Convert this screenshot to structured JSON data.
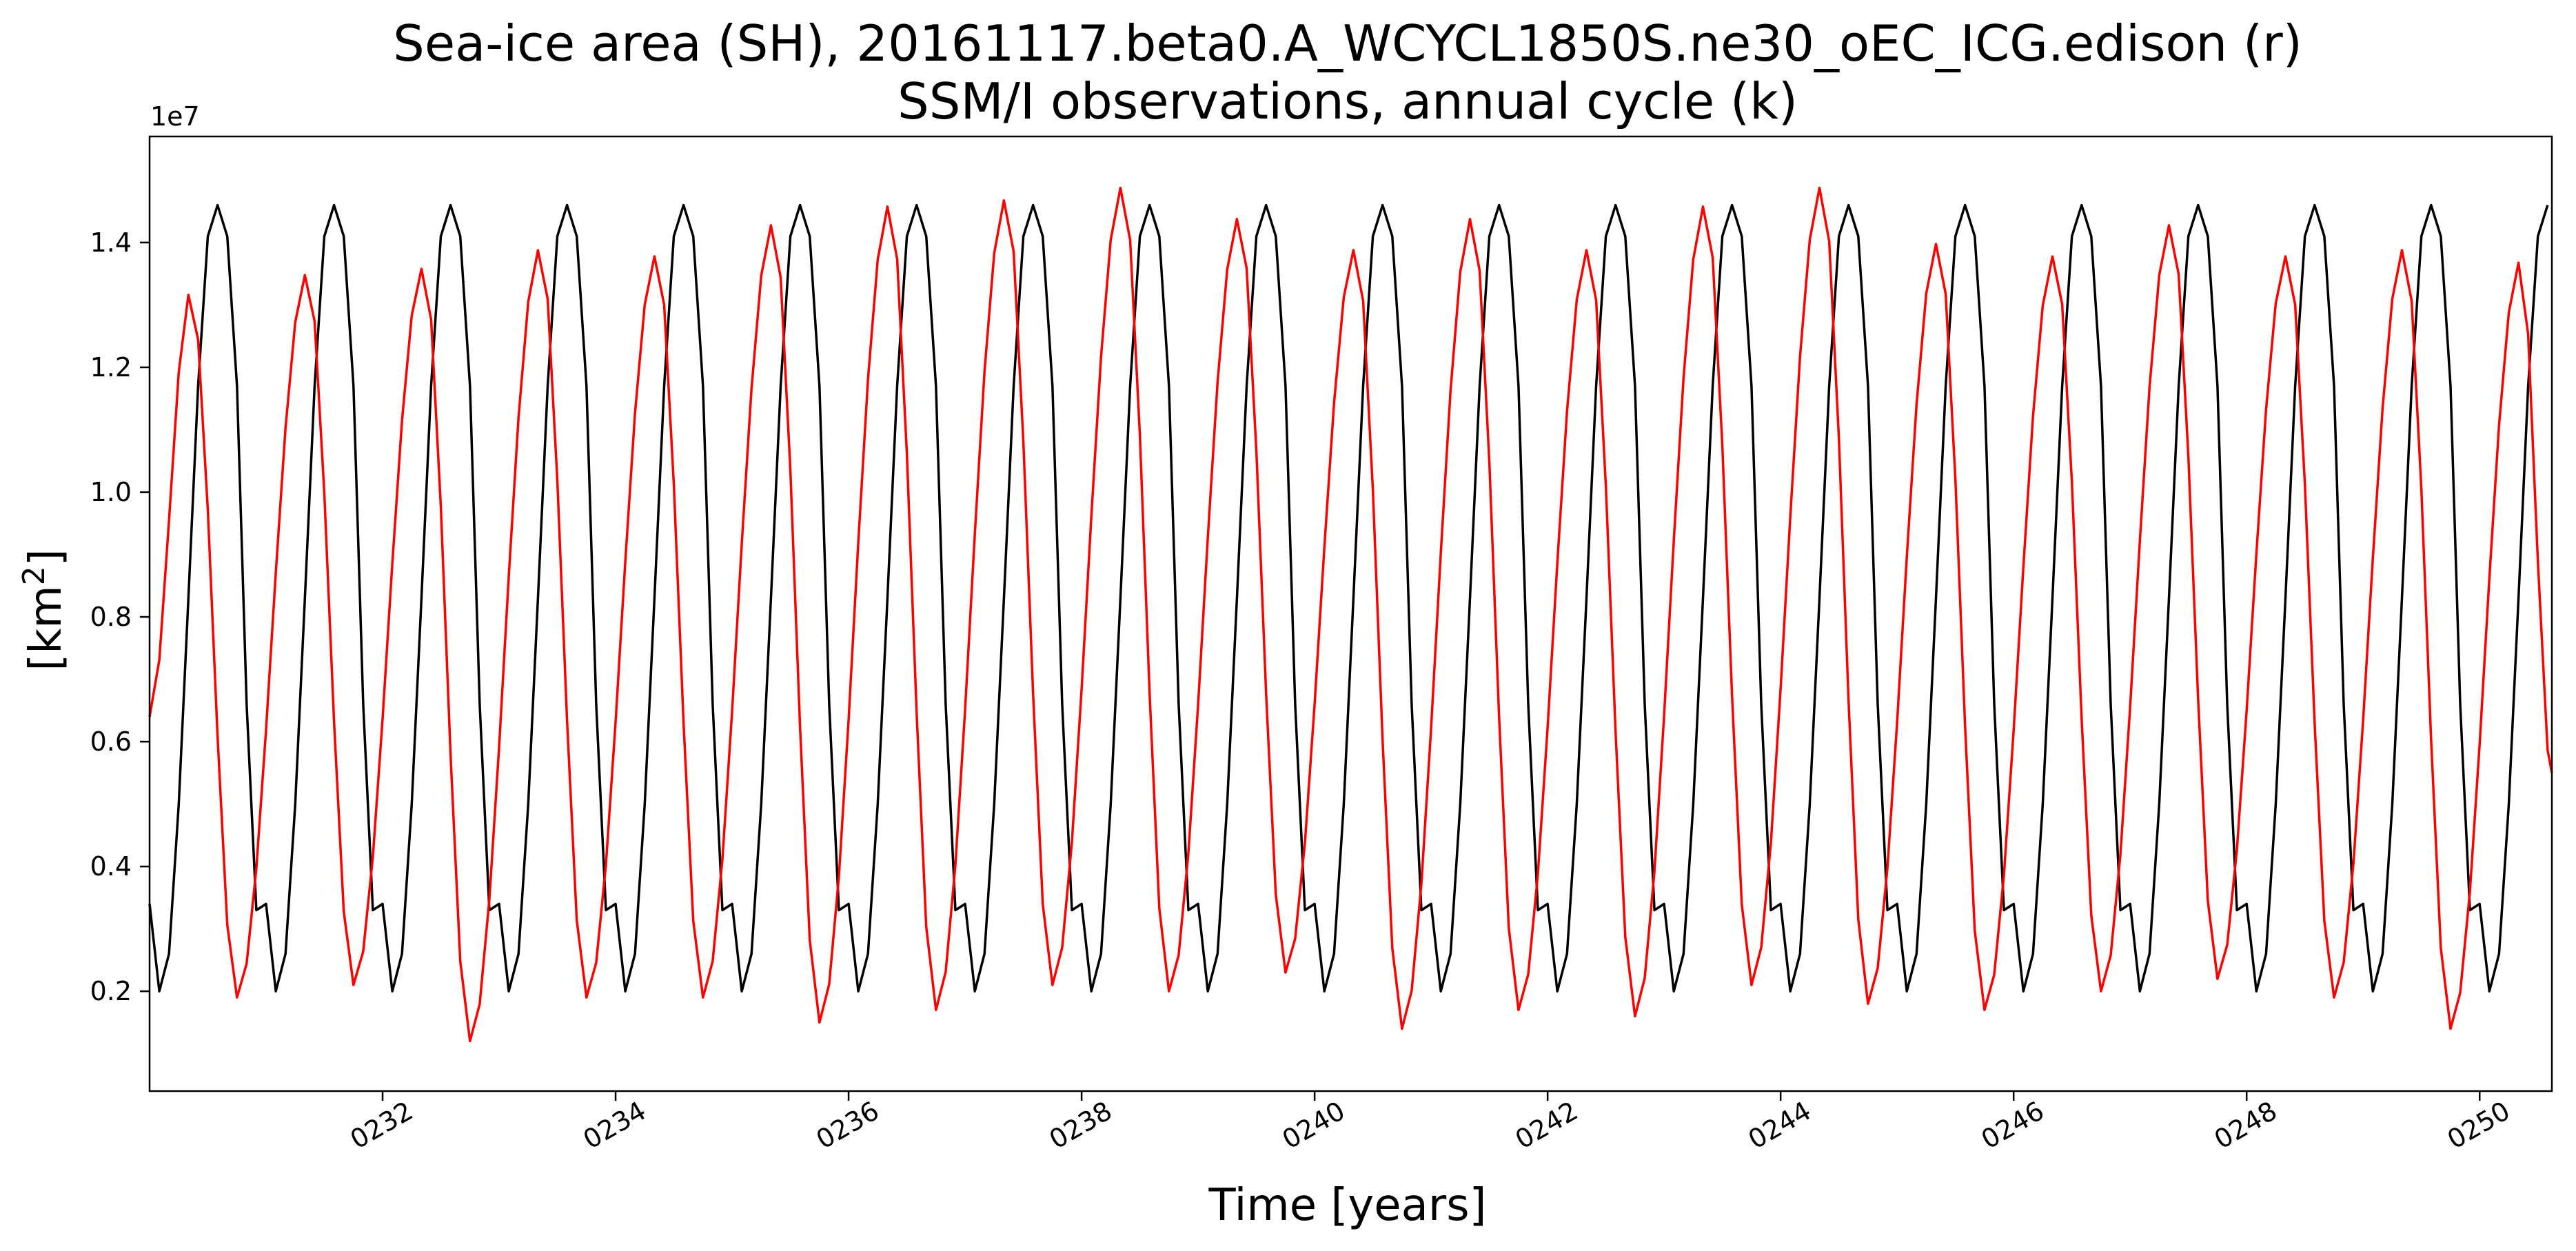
{
  "chart_data": {
    "type": "line",
    "title": "Sea-ice area (SH), 20161117.beta0.A_WCYCL1850S.ne30_oEC_ICG.edison (r)",
    "subtitle": "SSM/I observations, annual cycle (k)",
    "xlabel": "Time [years]",
    "ylabel_main": "[km",
    "ylabel_sup": "2",
    "ylabel_close": "]",
    "y_offset_label": "1e7",
    "xlim": [
      230.0,
      250.62
    ],
    "ylim": [
      0.04,
      1.57
    ],
    "x_ticks": [
      {
        "value": 232,
        "label": "0232"
      },
      {
        "value": 234,
        "label": "0234"
      },
      {
        "value": 236,
        "label": "0236"
      },
      {
        "value": 238,
        "label": "0238"
      },
      {
        "value": 240,
        "label": "0240"
      },
      {
        "value": 242,
        "label": "0242"
      },
      {
        "value": 244,
        "label": "0244"
      },
      {
        "value": 246,
        "label": "0246"
      },
      {
        "value": 248,
        "label": "0248"
      },
      {
        "value": 250,
        "label": "0250"
      }
    ],
    "y_ticks": [
      {
        "value": 0.2,
        "label": "0.2"
      },
      {
        "value": 0.4,
        "label": "0.4"
      },
      {
        "value": 0.6,
        "label": "0.6"
      },
      {
        "value": 0.8,
        "label": "0.8"
      },
      {
        "value": 1.0,
        "label": "1.0"
      },
      {
        "value": 1.2,
        "label": "1.2"
      },
      {
        "value": 1.4,
        "label": "1.4"
      }
    ],
    "grid": false,
    "observations_annual_cycle": {
      "color": "#000000",
      "monthly_values": [
        0.34,
        0.2,
        0.26,
        0.5,
        0.83,
        1.17,
        1.41,
        1.46,
        1.41,
        1.17,
        0.66,
        0.33
      ]
    },
    "model_peaks": {
      "color": "#ff0000",
      "start_value": 0.64,
      "end_value": 0.55,
      "yearly_min": [
        0.19,
        0.21,
        0.12,
        0.19,
        0.19,
        0.15,
        0.17,
        0.21,
        0.2,
        0.23,
        0.14,
        0.17,
        0.16,
        0.21,
        0.18,
        0.17,
        0.2,
        0.22,
        0.19,
        0.14
      ],
      "yearly_max": [
        1.32,
        1.35,
        1.36,
        1.39,
        1.38,
        1.43,
        1.46,
        1.47,
        1.49,
        1.44,
        1.39,
        1.44,
        1.39,
        1.46,
        1.49,
        1.4,
        1.38,
        1.43,
        1.38,
        1.39,
        1.37
      ]
    }
  }
}
